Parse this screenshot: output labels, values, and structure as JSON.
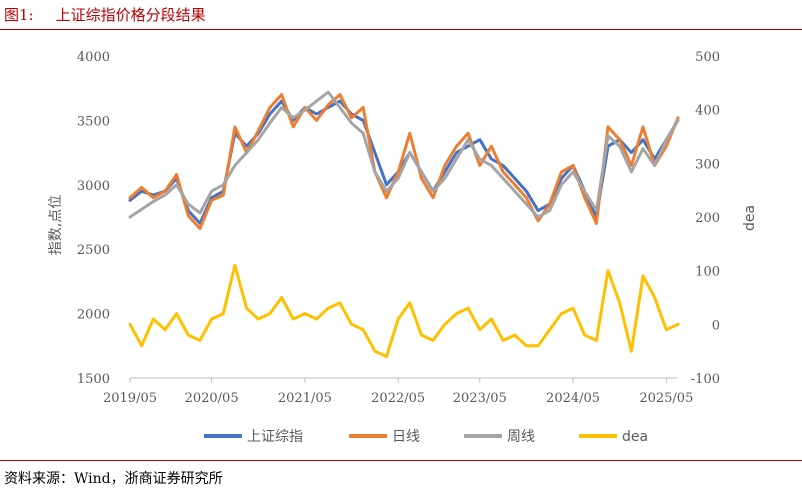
{
  "figure": {
    "number": "图1:",
    "title": "上证综指价格分段结果"
  },
  "source": "资料来源：Wind，浙商证券研究所",
  "colors": {
    "title": "#c00000",
    "index": "#4472c4",
    "daily": "#ed7d31",
    "weekly": "#a5a5a5",
    "dea": "#ffc000"
  },
  "chart_data": {
    "type": "line",
    "x": [
      "2019/05",
      "2019/07",
      "2019/09",
      "2019/11",
      "2020/01",
      "2020/02",
      "2020/03",
      "2020/05",
      "2020/06",
      "2020/07",
      "2020/09",
      "2020/11",
      "2021/01",
      "2021/02",
      "2021/03",
      "2021/05",
      "2021/07",
      "2021/09",
      "2021/10",
      "2021/12",
      "2022/01",
      "2022/03",
      "2022/04",
      "2022/05",
      "2022/07",
      "2022/09",
      "2022/10",
      "2022/12",
      "2023/01",
      "2023/03",
      "2023/05",
      "2023/07",
      "2023/09",
      "2023/10",
      "2023/12",
      "2024/01",
      "2024/02",
      "2024/03",
      "2024/05",
      "2024/07",
      "2024/09",
      "2024/10",
      "2024/12",
      "2025/02",
      "2025/03",
      "2025/04",
      "2025/05",
      "2025/07"
    ],
    "x_ticks": [
      "2019/05",
      "2020/05",
      "2021/05",
      "2022/05",
      "2023/05",
      "2024/05",
      "2025/05"
    ],
    "series": [
      {
        "name": "上证综指",
        "axis": "left",
        "values": [
          2880,
          2950,
          2920,
          2950,
          3050,
          2800,
          2700,
          2900,
          2950,
          3400,
          3300,
          3400,
          3550,
          3650,
          3500,
          3600,
          3550,
          3600,
          3650,
          3550,
          3500,
          3250,
          3000,
          3100,
          3250,
          3100,
          2950,
          3100,
          3250,
          3300,
          3350,
          3200,
          3150,
          3050,
          2950,
          2800,
          2850,
          3050,
          3150,
          2950,
          2750,
          3300,
          3350,
          3250,
          3350,
          3200,
          3350,
          3500
        ]
      },
      {
        "name": "日线",
        "axis": "left",
        "values": [
          2900,
          2980,
          2900,
          2950,
          3080,
          2760,
          2660,
          2880,
          2920,
          3450,
          3250,
          3420,
          3600,
          3700,
          3450,
          3600,
          3500,
          3620,
          3700,
          3520,
          3600,
          3100,
          2900,
          3100,
          3400,
          3050,
          2900,
          3150,
          3300,
          3400,
          3150,
          3300,
          3100,
          3000,
          2900,
          2720,
          2850,
          3100,
          3150,
          2900,
          2700,
          3450,
          3350,
          3150,
          3450,
          3150,
          3300,
          3520
        ]
      },
      {
        "name": "周线",
        "axis": "left",
        "values": [
          2750,
          2810,
          2870,
          2920,
          3000,
          2850,
          2780,
          2950,
          3000,
          3150,
          3250,
          3350,
          3480,
          3600,
          3520,
          3580,
          3650,
          3720,
          3600,
          3480,
          3400,
          3100,
          2950,
          3050,
          3250,
          3100,
          2950,
          3050,
          3200,
          3350,
          3200,
          3150,
          3050,
          2950,
          2850,
          2750,
          2800,
          3000,
          3100,
          2950,
          2800,
          3380,
          3300,
          3100,
          3280,
          3150,
          3350,
          3500
        ]
      },
      {
        "name": "dea",
        "axis": "right",
        "values": [
          0,
          -40,
          10,
          -10,
          20,
          -20,
          -30,
          10,
          20,
          110,
          30,
          10,
          20,
          50,
          10,
          20,
          10,
          30,
          40,
          0,
          -10,
          -50,
          -60,
          10,
          40,
          -20,
          -30,
          0,
          20,
          30,
          -10,
          10,
          -30,
          -20,
          -40,
          -40,
          -10,
          20,
          30,
          -20,
          -30,
          100,
          40,
          -50,
          90,
          50,
          -10,
          0
        ]
      }
    ],
    "ylim_left": [
      1500,
      4000
    ],
    "y_ticks_left": [
      "1500",
      "2000",
      "2500",
      "3000",
      "3500",
      "4000"
    ],
    "ylim_right": [
      -100,
      500
    ],
    "y_ticks_right": [
      "-100",
      "0",
      "100",
      "200",
      "300",
      "400",
      "500"
    ],
    "ylabel": "指数,点位",
    "ylabel_right": "dea",
    "legend_position": "bottom",
    "grid": false
  }
}
